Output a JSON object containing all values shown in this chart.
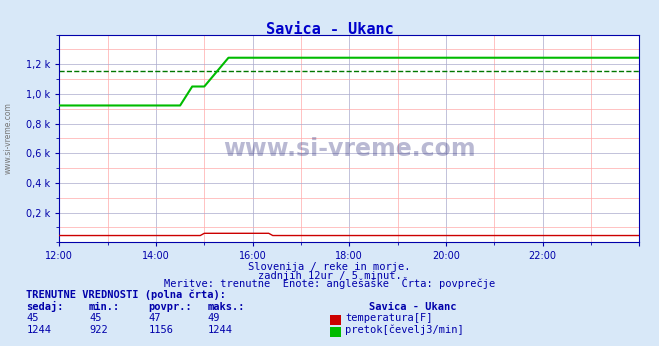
{
  "title": "Savica - Ukanc",
  "title_color": "#0000cc",
  "bg_color": "#d8e8f8",
  "plot_bg_color": "#ffffff",
  "grid_color_major": "#aaaaaa",
  "grid_color_minor": "#ffaaaa",
  "xlabel_texts": [
    "12:00",
    "14:00",
    "16:00",
    "18:00",
    "20:00",
    "22:00"
  ],
  "x_ticks": [
    0,
    24,
    48,
    72,
    96,
    120,
    144
  ],
  "x_tick_labels": [
    "12:00",
    "14:00",
    "16:00",
    "18:00",
    "20:00",
    "22:00",
    ""
  ],
  "ylabel_texts": [
    "0,2 k",
    "0,4 k",
    "0,6 k",
    "0,8 k",
    "1,0 k",
    "1,2 k"
  ],
  "y_ticks": [
    200,
    400,
    600,
    800,
    1000,
    1200
  ],
  "ymin": 0,
  "ymax": 1400,
  "temp_color": "#cc0000",
  "flow_color": "#00bb00",
  "avg_flow_color": "#007700",
  "watermark_text": "www.si-vreme.com",
  "subtitle1": "Slovenija / reke in morje.",
  "subtitle2": "zadnjih 12ur / 5 minut.",
  "subtitle3": "Meritve: trenutne  Enote: anglešaške  Črta: povprečje",
  "table_header": "TRENUTNE VREDNOSTI (polna črta):",
  "col_headers": [
    "sedaj:",
    "min.:",
    "povpr.:",
    "maks.:",
    "Savica - Ukanc"
  ],
  "temp_row": [
    "45",
    "45",
    "47",
    "49",
    "temperatura[F]"
  ],
  "flow_row": [
    "1244",
    "922",
    "1156",
    "1244",
    "pretok[čevelj3/min]"
  ],
  "flow_avg_level": 1156
}
